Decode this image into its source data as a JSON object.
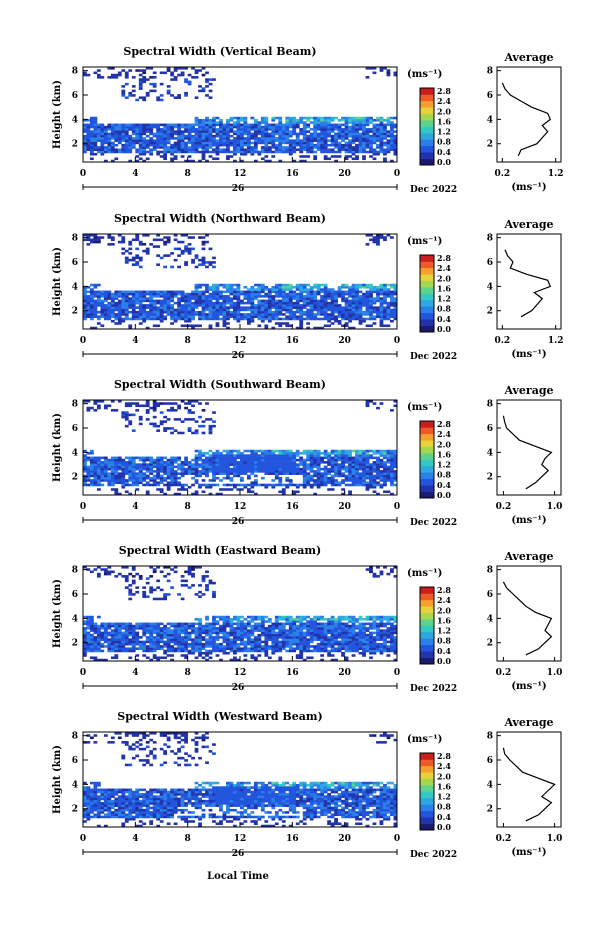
{
  "figure": {
    "x_axis_label": "Local Time",
    "height_label": "Height (km)",
    "unit_label": "(ms⁻¹)",
    "average_title": "Average",
    "date_left": "26",
    "date_right": "Dec 2022",
    "colorbar_ticks": [
      "2.8",
      "2.4",
      "2.0",
      "1.6",
      "1.2",
      "0.8",
      "0.4",
      "0.0"
    ],
    "colormap": [
      "#1a1a6e",
      "#2233aa",
      "#2255dd",
      "#2a7fe8",
      "#2fa8e0",
      "#35c9c4",
      "#5fd38c",
      "#a6d84f",
      "#e6d23a",
      "#f4a030",
      "#ee5a28",
      "#c81e1e"
    ]
  },
  "chart_data": [
    {
      "type": "heatmap",
      "title": "Spectral Width (Vertical Beam)",
      "xlabel": "Local Time",
      "ylabel": "Height (km)",
      "x_ticks": [
        "0",
        "4",
        "8",
        "12",
        "16",
        "20",
        "0"
      ],
      "y_ticks": [
        "2",
        "4",
        "6",
        "8"
      ],
      "xlim": [
        0,
        24
      ],
      "ylim": [
        0.5,
        8.3
      ],
      "colorbar": {
        "label": "(ms⁻¹)",
        "range": [
          0.0,
          2.8
        ]
      },
      "average_profile": {
        "title": "Average",
        "xlabel": "(ms⁻¹)",
        "x_ticks": [
          "0.2",
          "1.2"
        ],
        "xlim": [
          0.1,
          1.3
        ],
        "y_ticks": [
          "2",
          "4",
          "6",
          "8"
        ],
        "ylim": [
          0.5,
          8.3
        ],
        "height_km": [
          1.0,
          1.5,
          2.0,
          2.5,
          3.0,
          3.5,
          4.0,
          4.5,
          5.0,
          5.5,
          6.0,
          6.5,
          7.0
        ],
        "width_ms": [
          0.5,
          0.55,
          0.85,
          0.95,
          1.05,
          0.95,
          1.1,
          1.05,
          0.75,
          0.55,
          0.35,
          0.25,
          0.2
        ]
      }
    },
    {
      "type": "heatmap",
      "title": "Spectral Width (Northward Beam)",
      "xlabel": "Local Time",
      "ylabel": "Height (km)",
      "x_ticks": [
        "0",
        "4",
        "8",
        "12",
        "16",
        "20",
        "0"
      ],
      "y_ticks": [
        "2",
        "4",
        "6",
        "8"
      ],
      "xlim": [
        0,
        24
      ],
      "ylim": [
        0.5,
        8.3
      ],
      "colorbar": {
        "label": "(ms⁻¹)",
        "range": [
          0.0,
          2.8
        ]
      },
      "average_profile": {
        "title": "Average",
        "xlabel": "(ms⁻¹)",
        "x_ticks": [
          "0.2",
          "1.2"
        ],
        "xlim": [
          0.1,
          1.3
        ],
        "y_ticks": [
          "2",
          "4",
          "6",
          "8"
        ],
        "ylim": [
          0.5,
          8.3
        ],
        "height_km": [
          1.5,
          2.0,
          2.5,
          3.0,
          3.5,
          4.0,
          4.5,
          5.0,
          5.5,
          6.0,
          6.5,
          7.0
        ],
        "width_ms": [
          0.55,
          0.75,
          0.85,
          0.95,
          0.8,
          1.1,
          1.05,
          0.65,
          0.35,
          0.4,
          0.3,
          0.25
        ]
      }
    },
    {
      "type": "heatmap",
      "title": "Spectral Width (Southward Beam)",
      "xlabel": "Local Time",
      "ylabel": "Height (km)",
      "x_ticks": [
        "0",
        "4",
        "8",
        "12",
        "16",
        "20",
        "0"
      ],
      "y_ticks": [
        "2",
        "4",
        "6",
        "8"
      ],
      "xlim": [
        0,
        24
      ],
      "ylim": [
        0.5,
        8.3
      ],
      "colorbar": {
        "label": "(ms⁻¹)",
        "range": [
          0.0,
          2.8
        ]
      },
      "average_profile": {
        "title": "Average",
        "xlabel": "(ms⁻¹)",
        "x_ticks": [
          "0.2",
          "1.0"
        ],
        "xlim": [
          0.1,
          1.1
        ],
        "y_ticks": [
          "2",
          "4",
          "6",
          "8"
        ],
        "ylim": [
          0.5,
          8.3
        ],
        "height_km": [
          1.0,
          1.5,
          2.0,
          2.5,
          3.0,
          3.5,
          4.0,
          4.5,
          5.0,
          5.5,
          6.0,
          6.5,
          7.0
        ],
        "width_ms": [
          0.55,
          0.7,
          0.8,
          0.9,
          0.8,
          0.85,
          0.95,
          0.7,
          0.45,
          0.35,
          0.25,
          0.22,
          0.2
        ]
      }
    },
    {
      "type": "heatmap",
      "title": "Spectral Width (Eastward Beam)",
      "xlabel": "Local Time",
      "ylabel": "Height (km)",
      "x_ticks": [
        "0",
        "4",
        "8",
        "12",
        "16",
        "20",
        "0"
      ],
      "y_ticks": [
        "2",
        "4",
        "6",
        "8"
      ],
      "xlim": [
        0,
        24
      ],
      "ylim": [
        0.5,
        8.3
      ],
      "colorbar": {
        "label": "(ms⁻¹)",
        "range": [
          0.0,
          2.8
        ]
      },
      "average_profile": {
        "title": "Average",
        "xlabel": "(ms⁻¹)",
        "x_ticks": [
          "0.2",
          "1.0"
        ],
        "xlim": [
          0.1,
          1.1
        ],
        "y_ticks": [
          "2",
          "4",
          "6",
          "8"
        ],
        "ylim": [
          0.5,
          8.3
        ],
        "height_km": [
          1.0,
          1.5,
          2.0,
          2.5,
          3.0,
          3.5,
          4.0,
          4.5,
          5.0,
          5.5,
          6.0,
          6.5,
          7.0
        ],
        "width_ms": [
          0.55,
          0.75,
          0.85,
          0.95,
          0.85,
          0.9,
          0.95,
          0.7,
          0.55,
          0.45,
          0.35,
          0.25,
          0.2
        ]
      }
    },
    {
      "type": "heatmap",
      "title": "Spectral Width (Westward Beam)",
      "xlabel": "Local Time",
      "ylabel": "Height (km)",
      "x_ticks": [
        "0",
        "4",
        "8",
        "12",
        "16",
        "20",
        "0"
      ],
      "y_ticks": [
        "2",
        "4",
        "6",
        "8"
      ],
      "xlim": [
        0,
        24
      ],
      "ylim": [
        0.5,
        8.3
      ],
      "colorbar": {
        "label": "(ms⁻¹)",
        "range": [
          0.0,
          2.8
        ]
      },
      "average_profile": {
        "title": "Average",
        "xlabel": "(ms⁻¹)",
        "x_ticks": [
          "0.2",
          "1.0"
        ],
        "xlim": [
          0.1,
          1.1
        ],
        "y_ticks": [
          "2",
          "4",
          "6",
          "8"
        ],
        "ylim": [
          0.5,
          8.3
        ],
        "height_km": [
          1.0,
          1.5,
          2.0,
          2.5,
          3.0,
          3.5,
          4.0,
          4.5,
          5.0,
          5.5,
          6.0,
          6.5,
          7.0
        ],
        "width_ms": [
          0.55,
          0.75,
          0.85,
          0.95,
          0.8,
          0.9,
          1.0,
          0.75,
          0.5,
          0.4,
          0.3,
          0.22,
          0.2
        ]
      }
    }
  ]
}
